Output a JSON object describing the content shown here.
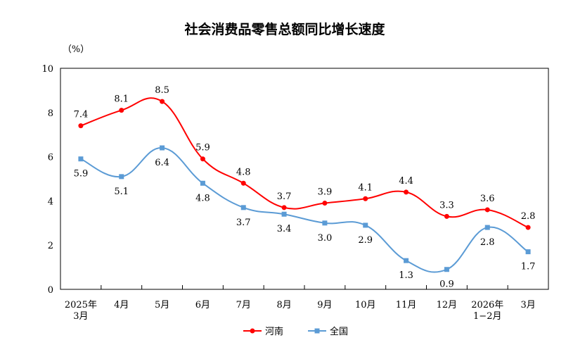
{
  "chart_data": {
    "type": "line",
    "title": "社会消费品零售总额同比增长速度",
    "ylabel": "（%）",
    "ylim": [
      0,
      10
    ],
    "yticks": [
      "0",
      "2",
      "4",
      "6",
      "8",
      "10"
    ],
    "grid": false,
    "legend_position": "bottom",
    "categories": [
      [
        "2025年",
        "3月"
      ],
      [
        "4月"
      ],
      [
        "5月"
      ],
      [
        "6月"
      ],
      [
        "7月"
      ],
      [
        "8月"
      ],
      [
        "9月"
      ],
      [
        "10月"
      ],
      [
        "11月"
      ],
      [
        "12月"
      ],
      [
        "2026年",
        "1−2月"
      ],
      [
        "3月"
      ]
    ],
    "series": [
      {
        "name": "河南",
        "color": "#ff0000",
        "marker": "circle",
        "values": [
          7.4,
          8.1,
          8.5,
          5.9,
          4.8,
          3.7,
          3.9,
          4.1,
          4.4,
          3.3,
          3.6,
          2.8
        ],
        "labels": [
          "7.4",
          "8.1",
          "8.5",
          "5.9",
          "4.8",
          "3.7",
          "3.9",
          "4.1",
          "4.4",
          "3.3",
          "3.6",
          "2.8"
        ]
      },
      {
        "name": "全国",
        "color": "#5b9bd5",
        "marker": "square",
        "values": [
          5.9,
          5.1,
          6.4,
          4.8,
          3.7,
          3.4,
          3.0,
          2.9,
          1.3,
          0.9,
          2.8,
          1.7
        ],
        "labels": [
          "5.9",
          "5.1",
          "6.4",
          "4.8",
          "3.7",
          "3.4",
          "3.0",
          "2.9",
          "1.3",
          "0.9",
          "2.8",
          "1.7"
        ]
      }
    ]
  }
}
